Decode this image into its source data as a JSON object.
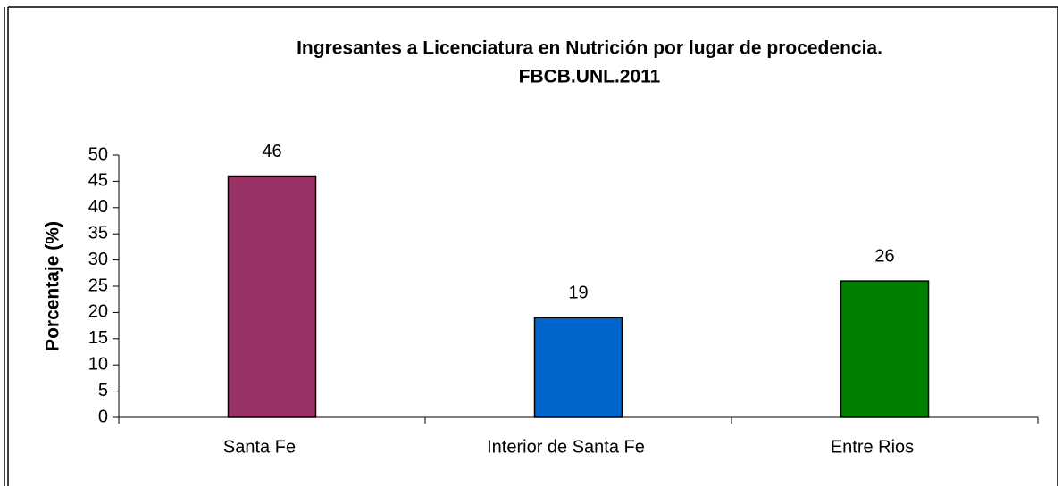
{
  "chart_data": {
    "type": "bar",
    "title": [
      "Ingresantes a Licenciatura en Nutrición por lugar de procedencia.",
      "FBCB.UNL.2011"
    ],
    "y_label": "Porcentaje (%)",
    "categories": [
      "Santa Fe",
      "Interior de Santa Fe",
      "Entre Rios"
    ],
    "values": [
      46,
      19,
      26
    ],
    "colors": [
      "#993366",
      "#0066cc",
      "#008000"
    ],
    "ylim": [
      0,
      50
    ],
    "yticks": [
      0,
      5,
      10,
      15,
      20,
      25,
      30,
      35,
      40,
      45,
      50
    ],
    "grid": false
  }
}
